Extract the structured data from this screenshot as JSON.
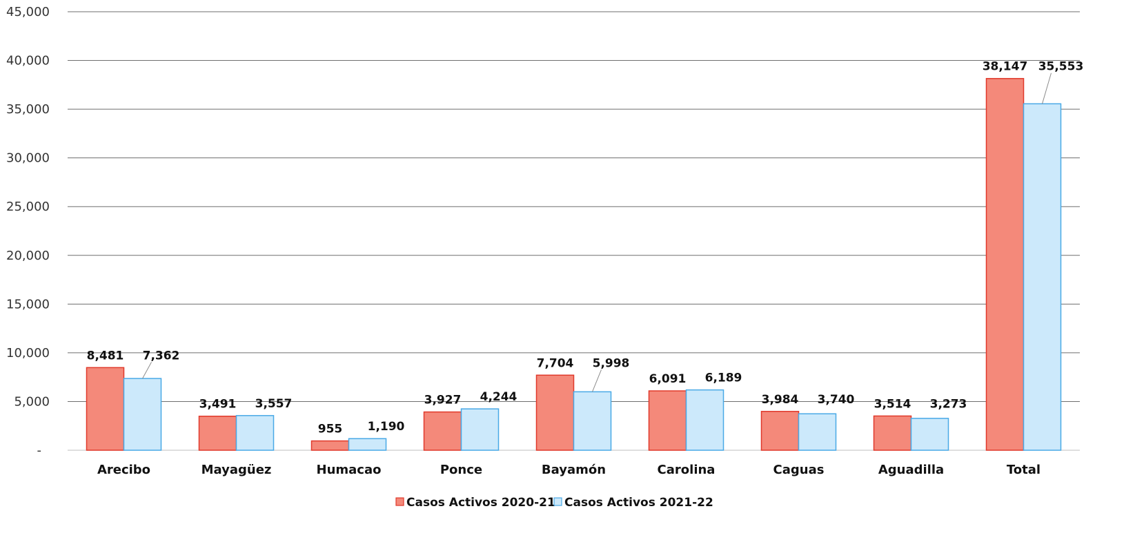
{
  "chart_data": {
    "type": "bar",
    "categories": [
      "Arecibo",
      "Mayagüez",
      "Humacao",
      "Ponce",
      "Bayamón",
      "Carolina",
      "Caguas",
      "Aguadilla",
      "Total"
    ],
    "series": [
      {
        "name": "Casos Activos 2020-21",
        "values": [
          8481,
          3491,
          955,
          3927,
          7704,
          6091,
          3984,
          3514,
          38147
        ],
        "labels": [
          "8,481",
          "3,491",
          "955",
          "3,927",
          "7,704",
          "6,091",
          "3,984",
          "3,514",
          "38,147"
        ],
        "fill": "#f4897a",
        "stroke": "#e0392b"
      },
      {
        "name": "Casos Activos 2021-22",
        "values": [
          7362,
          3557,
          1190,
          4244,
          5998,
          6189,
          3740,
          3273,
          35553
        ],
        "labels": [
          "7,362",
          "3,557",
          "1,190",
          "4,244",
          "5,998",
          "6,189",
          "3,740",
          "3,273",
          "35,553"
        ],
        "fill": "#cce9fb",
        "stroke": "#49a9e6"
      }
    ],
    "yticks": [
      {
        "value": 0,
        "label": "-"
      },
      {
        "value": 5000,
        "label": "5,000"
      },
      {
        "value": 10000,
        "label": "10,000"
      },
      {
        "value": 15000,
        "label": "15,000"
      },
      {
        "value": 20000,
        "label": "20,000"
      },
      {
        "value": 25000,
        "label": "25,000"
      },
      {
        "value": 30000,
        "label": "30,000"
      },
      {
        "value": 35000,
        "label": "35,000"
      },
      {
        "value": 40000,
        "label": "40,000"
      },
      {
        "value": 45000,
        "label": "45,000"
      }
    ],
    "ylim": [
      0,
      45000
    ],
    "grid": true,
    "gridline_color": "#6e6e6e",
    "legend_position": "bottom-center",
    "title": "",
    "xlabel": "",
    "ylabel": ""
  }
}
